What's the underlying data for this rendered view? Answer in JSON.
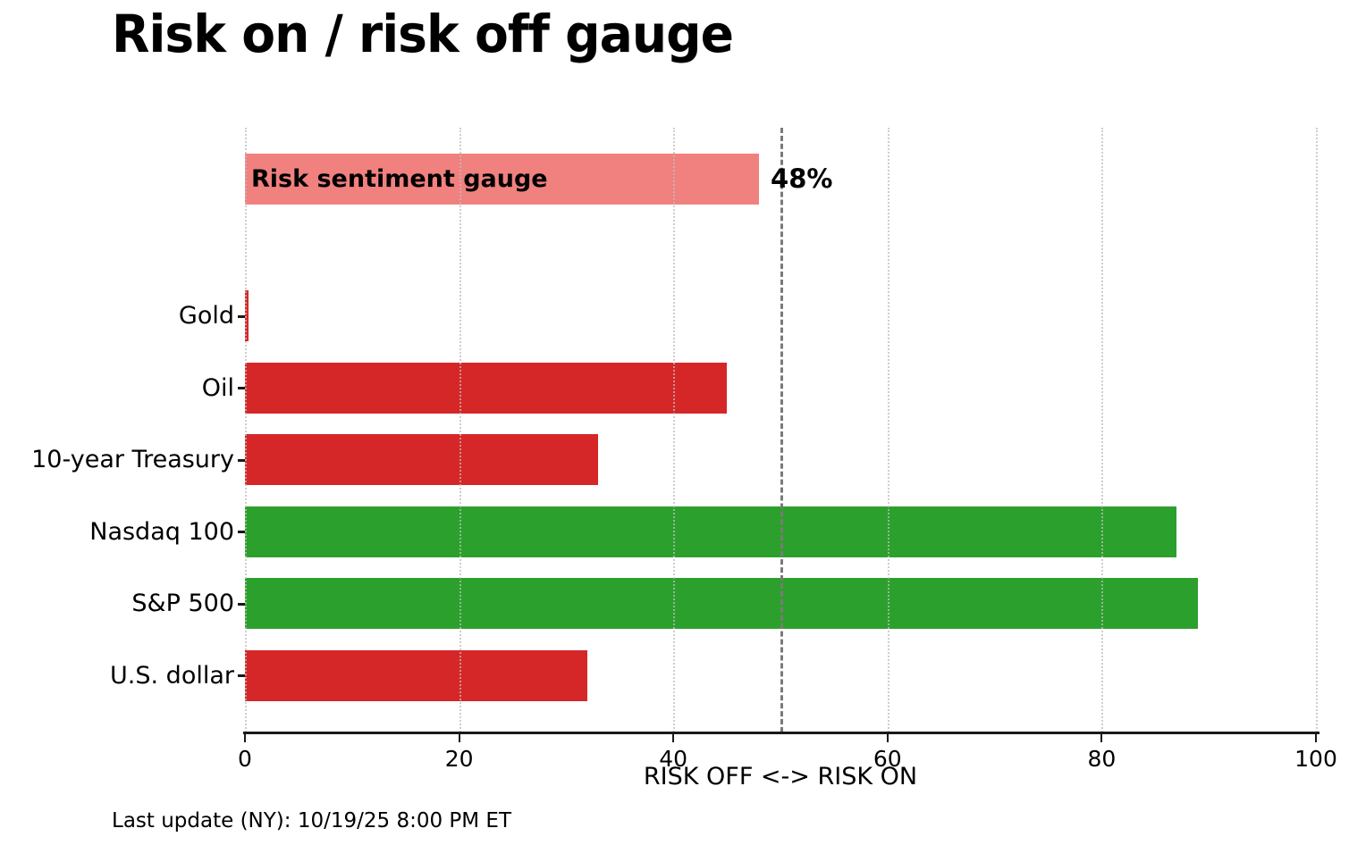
{
  "footer": {
    "last_update": "Last update (NY): 10/19/25 8:00 PM ET"
  },
  "chart_data": {
    "type": "bar",
    "orientation": "horizontal",
    "title": "Risk on / risk off gauge",
    "xlabel": "RISK OFF <-> RISK ON",
    "ylabel": "",
    "xlim": [
      0,
      100
    ],
    "xticks": [
      0,
      20,
      40,
      60,
      80,
      100
    ],
    "grid": "vertical dotted gridlines at each x tick, drawn over bars",
    "reference_line": {
      "x": 50,
      "style": "dashed",
      "color": "#7a7a7a"
    },
    "gauge": {
      "label": "Risk sentiment gauge",
      "value": 48,
      "annotation": "48%",
      "color": "#f0817f"
    },
    "categories": [
      "Gold",
      "Oil",
      "10-year Treasury",
      "Nasdaq 100",
      "S&P 500",
      "U.S. dollar"
    ],
    "values": [
      0.3,
      45,
      33,
      87,
      89,
      32
    ],
    "series": [
      {
        "name": "Gold",
        "value": 0.3,
        "color": "#d62728"
      },
      {
        "name": "Oil",
        "value": 45,
        "color": "#d62728"
      },
      {
        "name": "10-year Treasury",
        "value": 33,
        "color": "#d62728"
      },
      {
        "name": "Nasdaq 100",
        "value": 87,
        "color": "#2ca02c"
      },
      {
        "name": "S&P 500",
        "value": 89,
        "color": "#2ca02c"
      },
      {
        "name": "U.S. dollar",
        "value": 32,
        "color": "#d62728"
      }
    ],
    "colors": {
      "risk_off": "#d62728",
      "risk_on": "#2ca02c",
      "gauge": "#f0817f"
    }
  }
}
